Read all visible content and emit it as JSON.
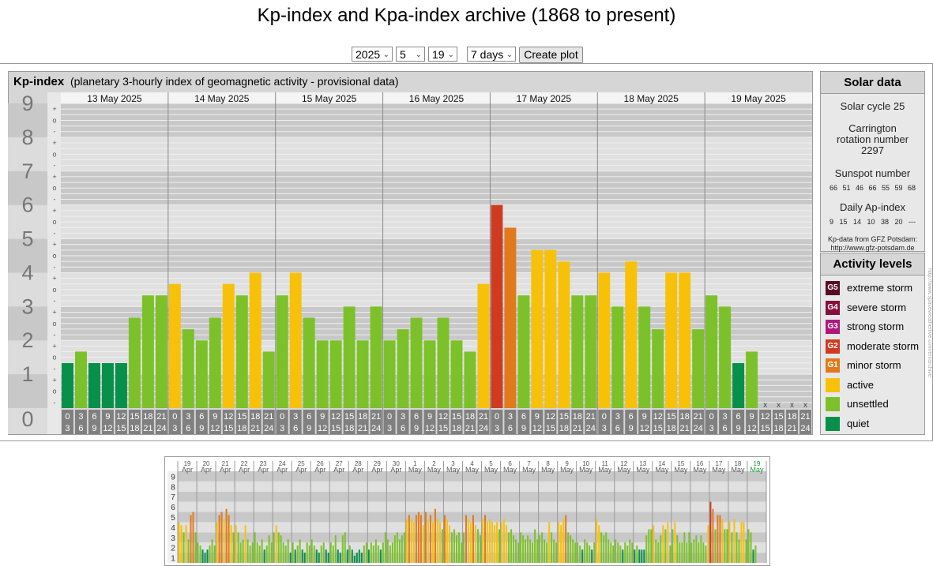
{
  "page_title": "Kp-index and Kpa-index archive (1868 to present)",
  "controls": {
    "year": "2025",
    "month": "5",
    "day": "19",
    "period": "7 days",
    "create_button": "Create plot"
  },
  "panel": {
    "title": "Kp-index",
    "subtitle": "(planetary 3-hourly index of geomagnetic activity - provisional data)"
  },
  "solar_data": {
    "title": "Solar data",
    "cycle": "Solar cycle 25",
    "carrington": "Carrington rotation number 2297",
    "sunspot_label": "Sunspot number",
    "sunspot_values": "66 51 46 66 55 59 68",
    "ap_label": "Daily Ap-index",
    "ap_values": "9 15 14 10 38 20 ---",
    "source": "Kp-data from GFZ Potsdam: http://www.gfz-potsdam.de"
  },
  "activity_levels": {
    "title": "Activity levels",
    "items": [
      {
        "code": "G5",
        "label": "extreme storm",
        "color": "#5a0a24"
      },
      {
        "code": "G4",
        "label": "severe storm",
        "color": "#85103f"
      },
      {
        "code": "G3",
        "label": "strong storm",
        "color": "#b0177a"
      },
      {
        "code": "G2",
        "label": "moderate storm",
        "color": "#d03a20"
      },
      {
        "code": "G1",
        "label": "minor storm",
        "color": "#e17a1b"
      },
      {
        "code": "",
        "label": "active",
        "color": "#f7c10a"
      },
      {
        "code": "",
        "label": "unsettled",
        "color": "#7cc12a"
      },
      {
        "code": "",
        "label": "quiet",
        "color": "#06904a"
      }
    ]
  },
  "watermark": "http://www.spaceweatherlive.com/en/archive",
  "chart_data": [
    {
      "type": "bar",
      "title": "Kp-index",
      "days": [
        "13 May 2025",
        "14 May 2025",
        "15 May 2025",
        "16 May 2025",
        "17 May 2025",
        "18 May 2025",
        "19 May 2025"
      ],
      "y_ticks": [
        "0",
        "1",
        "2",
        "3",
        "4",
        "5",
        "6",
        "7",
        "8",
        "9"
      ],
      "minor_ticks": [
        "-",
        "o",
        "+"
      ],
      "ylim": [
        0,
        9
      ],
      "intervals": [
        [
          "0",
          "3"
        ],
        [
          "3",
          "6"
        ],
        [
          "6",
          "9"
        ],
        [
          "9",
          "12"
        ],
        [
          "12",
          "15"
        ],
        [
          "15",
          "18"
        ],
        [
          "18",
          "21"
        ],
        [
          "21",
          "24"
        ]
      ],
      "missing_marker": "x",
      "values": [
        1.33,
        1.67,
        1.33,
        1.33,
        1.33,
        2.67,
        3.33,
        3.33,
        3.67,
        2.33,
        2.0,
        2.67,
        3.67,
        3.33,
        4.0,
        1.67,
        3.33,
        4.0,
        2.67,
        2.0,
        2.0,
        3.0,
        2.0,
        3.0,
        2.0,
        2.33,
        2.67,
        2.0,
        2.67,
        2.0,
        1.67,
        3.67,
        6.0,
        5.33,
        3.33,
        4.67,
        4.67,
        4.33,
        3.33,
        3.33,
        4.0,
        3.0,
        4.33,
        3.0,
        2.33,
        4.0,
        4.0,
        2.33,
        3.33,
        3.0,
        1.33,
        1.67,
        null,
        null,
        null,
        null
      ]
    },
    {
      "type": "bar",
      "title": "",
      "days": [
        {
          "d": "19",
          "m": "Apr"
        },
        {
          "d": "20",
          "m": "Apr"
        },
        {
          "d": "21",
          "m": "Apr"
        },
        {
          "d": "22",
          "m": "Apr"
        },
        {
          "d": "23",
          "m": "Apr"
        },
        {
          "d": "24",
          "m": "Apr"
        },
        {
          "d": "25",
          "m": "Apr"
        },
        {
          "d": "26",
          "m": "Apr"
        },
        {
          "d": "27",
          "m": "Apr"
        },
        {
          "d": "28",
          "m": "Apr"
        },
        {
          "d": "29",
          "m": "Apr"
        },
        {
          "d": "30",
          "m": "Apr"
        },
        {
          "d": "1",
          "m": "May"
        },
        {
          "d": "2",
          "m": "May"
        },
        {
          "d": "3",
          "m": "May"
        },
        {
          "d": "4",
          "m": "May"
        },
        {
          "d": "5",
          "m": "May"
        },
        {
          "d": "6",
          "m": "May"
        },
        {
          "d": "7",
          "m": "May"
        },
        {
          "d": "8",
          "m": "May"
        },
        {
          "d": "9",
          "m": "May"
        },
        {
          "d": "10",
          "m": "May"
        },
        {
          "d": "11",
          "m": "May"
        },
        {
          "d": "12",
          "m": "May"
        },
        {
          "d": "13",
          "m": "May"
        },
        {
          "d": "14",
          "m": "May"
        },
        {
          "d": "15",
          "m": "May"
        },
        {
          "d": "16",
          "m": "May"
        },
        {
          "d": "17",
          "m": "May"
        },
        {
          "d": "18",
          "m": "May"
        },
        {
          "d": "19",
          "m": "May"
        }
      ],
      "highlight_day_color": "#1a9a3a",
      "y_ticks": [
        "1",
        "2",
        "3",
        "4",
        "5",
        "6",
        "7",
        "8",
        "9"
      ],
      "ylim": [
        0,
        9
      ],
      "daily_values": [
        [
          4.0,
          3.7,
          3.0,
          3.7,
          2.3,
          4.7,
          5.0,
          3.0
        ],
        [
          2.0,
          1.7,
          1.3,
          1.0,
          1.3,
          1.7,
          2.3,
          1.7
        ],
        [
          4.0,
          4.7,
          5.0,
          4.3,
          5.3,
          4.7,
          3.7,
          3.0
        ],
        [
          3.7,
          3.0,
          2.0,
          2.3,
          3.7,
          2.3,
          1.7,
          2.0
        ],
        [
          3.0,
          2.0,
          1.7,
          2.3,
          1.3,
          1.7,
          2.7,
          2.0
        ],
        [
          3.0,
          3.7,
          3.0,
          2.7,
          2.0,
          1.7,
          2.3,
          1.0
        ],
        [
          2.0,
          1.3,
          1.7,
          2.3,
          1.3,
          1.0,
          2.0,
          1.7
        ],
        [
          2.3,
          1.7,
          1.3,
          1.0,
          1.7,
          2.0,
          1.3,
          1.0
        ],
        [
          2.0,
          1.7,
          2.7,
          1.3,
          1.0,
          2.7,
          3.0,
          1.3
        ],
        [
          1.7,
          1.3,
          0.7,
          1.0,
          1.3,
          1.0,
          1.7,
          2.0
        ],
        [
          1.3,
          2.0,
          1.7,
          2.3,
          1.7,
          1.3,
          2.0,
          3.0
        ],
        [
          2.3,
          1.7,
          2.0,
          2.7,
          3.0,
          2.3,
          2.7,
          3.0
        ],
        [
          4.3,
          4.7,
          4.3,
          4.0,
          4.7,
          5.0,
          4.7,
          3.7
        ],
        [
          5.0,
          4.3,
          4.7,
          4.0,
          5.3,
          4.3,
          4.0,
          3.3
        ],
        [
          4.7,
          4.3,
          3.7,
          3.0,
          3.3,
          2.7,
          3.0,
          2.0
        ],
        [
          3.0,
          4.7,
          4.3,
          4.0,
          4.7,
          3.7,
          3.3,
          2.7
        ],
        [
          4.3,
          4.7,
          4.0,
          4.3,
          4.0,
          3.7,
          4.0,
          3.3
        ],
        [
          4.0,
          4.3,
          3.7,
          3.0,
          3.3,
          2.7,
          2.3,
          2.0
        ],
        [
          3.0,
          2.7,
          2.3,
          2.7,
          2.3,
          2.0,
          3.3,
          2.3
        ],
        [
          2.7,
          3.0,
          2.3,
          2.0,
          4.0,
          3.0,
          2.3,
          2.0
        ],
        [
          4.0,
          3.7,
          4.3,
          4.7,
          3.0,
          2.7,
          2.3,
          2.0
        ],
        [
          2.0,
          1.7,
          1.3,
          2.3,
          2.0,
          1.7,
          1.3,
          2.0
        ],
        [
          4.3,
          3.7,
          3.0,
          2.7,
          3.0,
          2.3,
          2.0,
          1.7
        ],
        [
          2.3,
          2.0,
          1.7,
          1.3,
          2.0,
          1.7,
          2.3,
          2.0
        ],
        [
          1.3,
          1.7,
          1.3,
          1.3,
          1.3,
          2.7,
          3.3,
          3.3
        ],
        [
          3.7,
          2.3,
          2.0,
          2.7,
          3.7,
          3.3,
          4.0,
          1.7
        ],
        [
          3.3,
          4.0,
          2.7,
          2.0,
          2.0,
          3.0,
          2.0,
          3.0
        ],
        [
          2.0,
          2.3,
          2.7,
          2.0,
          2.7,
          2.0,
          1.7,
          3.7
        ],
        [
          6.0,
          5.3,
          3.3,
          4.7,
          4.7,
          4.3,
          3.3,
          3.3
        ],
        [
          4.0,
          3.0,
          4.3,
          3.0,
          2.3,
          4.0,
          4.0,
          2.3
        ],
        [
          3.3,
          3.0,
          1.3,
          1.7,
          null,
          null,
          null,
          null
        ]
      ]
    }
  ]
}
